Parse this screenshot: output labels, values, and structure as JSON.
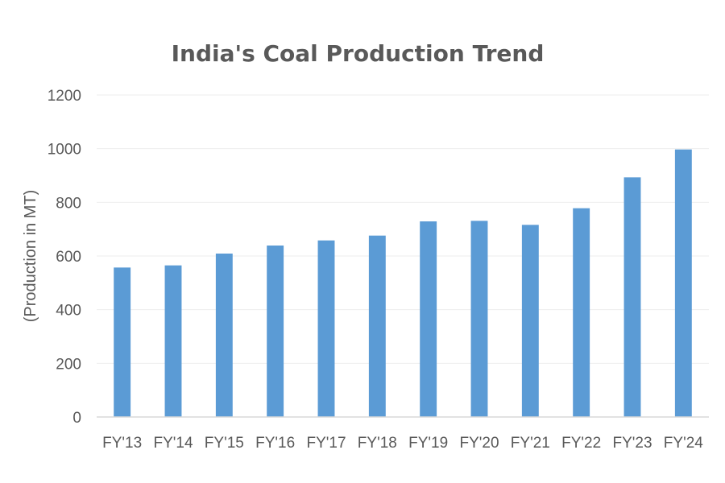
{
  "chart_data": {
    "type": "bar",
    "title": "India's Coal Production Trend",
    "xlabel": "",
    "ylabel": "(Production in MT)",
    "categories": [
      "FY'13",
      "FY'14",
      "FY'15",
      "FY'16",
      "FY'17",
      "FY'18",
      "FY'19",
      "FY'20",
      "FY'21",
      "FY'22",
      "FY'23",
      "FY'24"
    ],
    "values": [
      557,
      565,
      609,
      639,
      658,
      676,
      729,
      731,
      716,
      778,
      893,
      997
    ],
    "ylim": [
      0,
      1200
    ],
    "yticks": [
      0,
      200,
      400,
      600,
      800,
      1000,
      1200
    ],
    "grid": true,
    "legend": "none",
    "colors": {
      "bar": "#5B9BD5",
      "grid": "#EEEEEE",
      "axis": "#D9D9D9",
      "text": "#595959"
    }
  }
}
